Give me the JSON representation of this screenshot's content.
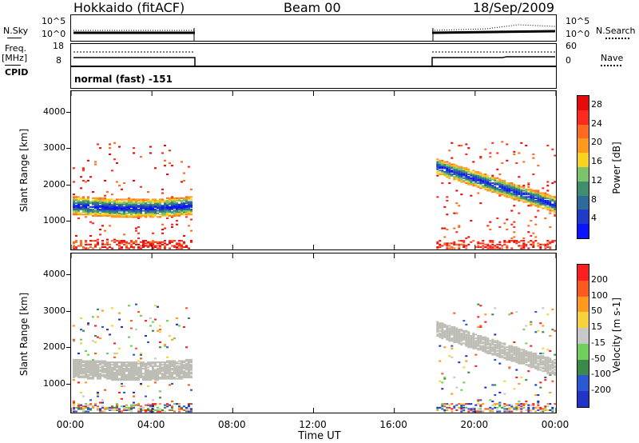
{
  "header": {
    "station": "Hokkaido (fitACF)",
    "beam": "Beam 00",
    "date": "18/Sep/2009"
  },
  "panels": {
    "nsky_label": "N.Sky",
    "nsky_ticks": [
      "10^5",
      "10^0"
    ],
    "nsearch_label": "N.Search",
    "nsearch_ticks": [
      "10^5",
      "10^0"
    ],
    "freq_label": "Freq.",
    "freq_unit": "[MHz]",
    "freq_ticks": [
      "18",
      "8"
    ],
    "nave_label": "Nave",
    "nave_ticks": [
      "60",
      "0"
    ],
    "cpid_label": "CPID",
    "cpid_text": "normal (fast) -151"
  },
  "colors": {
    "power_scale": [
      "#0a14ff",
      "#1e3cc8",
      "#2e6a9a",
      "#3f8e6c",
      "#7cc46a",
      "#f7d21f",
      "#ff9a1e",
      "#ff6a1e",
      "#ff2a1e",
      "#e60a0a"
    ],
    "velocity_scale": [
      "#2034c8",
      "#2a5ad2",
      "#3a8a4a",
      "#6ed05a",
      "#c8c8c8",
      "#f8d23a",
      "#ff9a1e",
      "#ff5a1e",
      "#ff1e1e"
    ],
    "ground_scatter": "#bdbdb5"
  },
  "chart_data": [
    {
      "type": "heatmap",
      "title": "",
      "xlabel": "Time UT",
      "ylabel": "Slant Range [km]",
      "xlim": [
        "00:00",
        "24:00"
      ],
      "ylim": [
        180,
        4600
      ],
      "x_ticks": [
        "00:00",
        "04:00",
        "08:00",
        "12:00",
        "16:00",
        "20:00",
        "00:00"
      ],
      "y_ticks": [
        1000,
        2000,
        3000,
        4000
      ],
      "colorbar": {
        "label": "Power [dB]",
        "ticks": [
          4,
          8,
          12,
          16,
          20,
          24,
          28
        ],
        "range": [
          0,
          30
        ]
      },
      "data_coverage_ut_hours": [
        [
          0,
          6
        ],
        [
          18,
          24
        ]
      ]
    },
    {
      "type": "heatmap",
      "title": "",
      "xlabel": "Time UT",
      "ylabel": "Slant Range [km]",
      "xlim": [
        "00:00",
        "24:00"
      ],
      "ylim": [
        180,
        4600
      ],
      "x_ticks": [
        "00:00",
        "04:00",
        "08:00",
        "12:00",
        "16:00",
        "20:00",
        "00:00"
      ],
      "y_ticks": [
        1000,
        2000,
        3000,
        4000
      ],
      "colorbar": {
        "label": "Velocity [m s-1]",
        "ticks": [
          200,
          100,
          50,
          15,
          -15,
          -50,
          -100,
          -200
        ]
      },
      "data_coverage_ut_hours": [
        [
          0,
          6
        ],
        [
          18,
          24
        ]
      ]
    }
  ]
}
